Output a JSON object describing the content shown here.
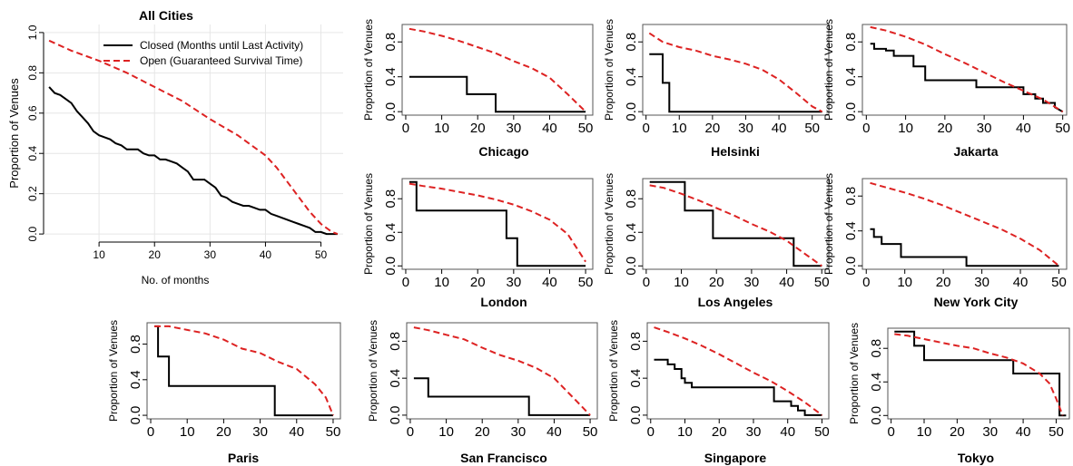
{
  "chart_data": [
    {
      "type": "line",
      "title": "All Cities",
      "xlabel": "No. of months",
      "ylabel": "Proportion of Venues",
      "xlim": [
        0,
        54
      ],
      "ylim": [
        -0.04,
        1.04
      ],
      "xticks": [
        10,
        20,
        30,
        40,
        50
      ],
      "yticks": [
        0.0,
        0.2,
        0.4,
        0.6,
        0.8,
        1.0
      ],
      "ytick_labels": [
        "0.0",
        "0.2",
        "0.4",
        "0.6",
        "0.8",
        "1.0"
      ],
      "grid": true,
      "legend": "top-right",
      "series": [
        {
          "name": "Closed (Months until Last Activity)",
          "style": "solid",
          "color": "#000000",
          "x": [
            1,
            2,
            3,
            4,
            5,
            6,
            7,
            8,
            9,
            10,
            11,
            12,
            13,
            14,
            15,
            16,
            17,
            18,
            19,
            20,
            21,
            22,
            23,
            24,
            25,
            26,
            27,
            28,
            29,
            30,
            31,
            32,
            33,
            34,
            35,
            36,
            37,
            38,
            39,
            40,
            41,
            42,
            43,
            44,
            45,
            46,
            47,
            48,
            49,
            50,
            51,
            52,
            53
          ],
          "y": [
            0.73,
            0.7,
            0.69,
            0.67,
            0.65,
            0.61,
            0.58,
            0.55,
            0.51,
            0.49,
            0.48,
            0.47,
            0.45,
            0.44,
            0.42,
            0.42,
            0.42,
            0.4,
            0.39,
            0.39,
            0.37,
            0.37,
            0.36,
            0.35,
            0.33,
            0.31,
            0.27,
            0.27,
            0.27,
            0.25,
            0.23,
            0.19,
            0.18,
            0.16,
            0.15,
            0.14,
            0.14,
            0.13,
            0.12,
            0.12,
            0.1,
            0.09,
            0.08,
            0.07,
            0.06,
            0.05,
            0.04,
            0.03,
            0.01,
            0.01,
            0.0,
            0.0,
            0.0
          ]
        },
        {
          "name": "Open (Guaranteed Survival Time)",
          "style": "dashed",
          "color": "#dd2222",
          "x": [
            1,
            5,
            10,
            15,
            20,
            25,
            30,
            35,
            40,
            42,
            45,
            48,
            50,
            52,
            53
          ],
          "y": [
            0.96,
            0.91,
            0.86,
            0.8,
            0.73,
            0.66,
            0.57,
            0.49,
            0.39,
            0.33,
            0.22,
            0.11,
            0.05,
            0.01,
            0.0
          ]
        }
      ]
    },
    {
      "type": "line",
      "title": "Chicago",
      "ylabel": "Proportion of Venues",
      "xlim": [
        -1,
        52
      ],
      "ylim": [
        -0.04,
        1.0
      ],
      "xticks": [
        0,
        10,
        20,
        30,
        40,
        50
      ],
      "yticks": [
        0.0,
        0.4,
        0.8
      ],
      "ytick_labels": [
        "0.0",
        "0.4",
        "0.8"
      ],
      "series": [
        {
          "style": "solid",
          "color": "#000000",
          "x": [
            1,
            17,
            17,
            25,
            25,
            50
          ],
          "y": [
            0.4,
            0.4,
            0.2,
            0.2,
            0.0,
            0.0
          ]
        },
        {
          "style": "dashed",
          "color": "#dd2222",
          "x": [
            1,
            5,
            10,
            15,
            20,
            25,
            30,
            35,
            40,
            45,
            50
          ],
          "y": [
            0.95,
            0.92,
            0.87,
            0.81,
            0.74,
            0.67,
            0.58,
            0.5,
            0.39,
            0.2,
            0.0
          ]
        }
      ]
    },
    {
      "type": "line",
      "title": "Helsinki",
      "ylabel": "Proportion of Venues",
      "xlim": [
        -1,
        55
      ],
      "ylim": [
        -0.04,
        1.0
      ],
      "xticks": [
        0,
        10,
        20,
        30,
        40,
        50
      ],
      "yticks": [
        0.0,
        0.4,
        0.8
      ],
      "ytick_labels": [
        "0.0",
        "0.4",
        "0.8"
      ],
      "series": [
        {
          "style": "solid",
          "color": "#000000",
          "x": [
            1,
            5,
            5,
            7,
            7,
            9,
            9,
            53
          ],
          "y": [
            0.66,
            0.66,
            0.33,
            0.33,
            0.0,
            0.0,
            0.0,
            0.0
          ]
        },
        {
          "style": "dashed",
          "color": "#dd2222",
          "x": [
            1,
            5,
            10,
            15,
            20,
            25,
            30,
            35,
            40,
            45,
            50,
            53
          ],
          "y": [
            0.9,
            0.8,
            0.74,
            0.7,
            0.64,
            0.6,
            0.55,
            0.48,
            0.37,
            0.22,
            0.06,
            0.0
          ]
        }
      ]
    },
    {
      "type": "line",
      "title": "Jakarta",
      "ylabel": "Proportion of Venues",
      "xlim": [
        -1,
        51
      ],
      "ylim": [
        -0.04,
        1.0
      ],
      "xticks": [
        0,
        10,
        20,
        30,
        40,
        50
      ],
      "yticks": [
        0.0,
        0.4,
        0.8
      ],
      "ytick_labels": [
        "0.0",
        "0.4",
        "0.8"
      ],
      "series": [
        {
          "style": "solid",
          "color": "#000000",
          "x": [
            1,
            2,
            2,
            5,
            5,
            7,
            7,
            9,
            9,
            12,
            12,
            15,
            15,
            28,
            28,
            40,
            40,
            43,
            43,
            45,
            45,
            48,
            48,
            50
          ],
          "y": [
            0.78,
            0.78,
            0.72,
            0.72,
            0.7,
            0.7,
            0.64,
            0.64,
            0.64,
            0.64,
            0.52,
            0.52,
            0.36,
            0.36,
            0.28,
            0.28,
            0.2,
            0.2,
            0.15,
            0.15,
            0.1,
            0.1,
            0.05,
            0.0
          ]
        },
        {
          "style": "dashed",
          "color": "#dd2222",
          "x": [
            1,
            5,
            10,
            15,
            20,
            25,
            30,
            35,
            40,
            45,
            50
          ],
          "y": [
            0.97,
            0.93,
            0.86,
            0.77,
            0.66,
            0.56,
            0.45,
            0.34,
            0.24,
            0.14,
            0.0
          ]
        }
      ]
    },
    {
      "type": "line",
      "title": "London",
      "ylabel": "Proportion of Venues",
      "xlim": [
        -1,
        52
      ],
      "ylim": [
        -0.04,
        1.04
      ],
      "xticks": [
        0,
        10,
        20,
        30,
        40,
        50
      ],
      "yticks": [
        0.0,
        0.4,
        0.8
      ],
      "ytick_labels": [
        "0.0",
        "0.4",
        "0.8"
      ],
      "series": [
        {
          "style": "solid",
          "color": "#000000",
          "x": [
            1,
            3,
            3,
            28,
            28,
            30,
            30,
            31,
            31,
            50
          ],
          "y": [
            1.0,
            1.0,
            0.66,
            0.66,
            0.33,
            0.33,
            0.33,
            0.33,
            0.0,
            0.0
          ]
        },
        {
          "style": "dashed",
          "color": "#dd2222",
          "x": [
            1,
            5,
            10,
            15,
            20,
            25,
            30,
            35,
            40,
            45,
            50
          ],
          "y": [
            0.98,
            0.95,
            0.92,
            0.88,
            0.84,
            0.79,
            0.73,
            0.65,
            0.55,
            0.38,
            0.05
          ]
        }
      ]
    },
    {
      "type": "line",
      "title": "Los Angeles",
      "ylabel": "Proportion of Venues",
      "xlim": [
        -1,
        52
      ],
      "ylim": [
        -0.04,
        1.04
      ],
      "xticks": [
        0,
        10,
        20,
        30,
        40,
        50
      ],
      "yticks": [
        0.0,
        0.4,
        0.8
      ],
      "ytick_labels": [
        "0.0",
        "0.4",
        "0.8"
      ],
      "series": [
        {
          "style": "solid",
          "color": "#000000",
          "x": [
            1,
            11,
            11,
            19,
            19,
            42,
            42,
            50
          ],
          "y": [
            1.0,
            1.0,
            0.66,
            0.66,
            0.33,
            0.33,
            0.0,
            0.0
          ]
        },
        {
          "style": "dashed",
          "color": "#dd2222",
          "x": [
            1,
            5,
            10,
            15,
            20,
            25,
            30,
            35,
            40,
            45,
            50
          ],
          "y": [
            0.96,
            0.93,
            0.86,
            0.78,
            0.69,
            0.6,
            0.5,
            0.41,
            0.3,
            0.15,
            0.0
          ]
        }
      ]
    },
    {
      "type": "line",
      "title": "New York City",
      "ylabel": "Proportion of Venues",
      "xlim": [
        -1,
        52
      ],
      "ylim": [
        -0.04,
        1.0
      ],
      "xticks": [
        0,
        10,
        20,
        30,
        40,
        50
      ],
      "yticks": [
        0.0,
        0.4,
        0.8
      ],
      "ytick_labels": [
        "0.0",
        "0.4",
        "0.8"
      ],
      "series": [
        {
          "style": "solid",
          "color": "#000000",
          "x": [
            1,
            2,
            2,
            4,
            4,
            6,
            6,
            9,
            9,
            26,
            26,
            50
          ],
          "y": [
            0.42,
            0.42,
            0.33,
            0.33,
            0.25,
            0.25,
            0.25,
            0.25,
            0.1,
            0.1,
            0.0,
            0.0
          ]
        },
        {
          "style": "dashed",
          "color": "#dd2222",
          "x": [
            1,
            5,
            10,
            15,
            20,
            25,
            30,
            35,
            40,
            45,
            50
          ],
          "y": [
            0.95,
            0.9,
            0.84,
            0.77,
            0.69,
            0.6,
            0.51,
            0.42,
            0.31,
            0.18,
            0.0
          ]
        }
      ]
    },
    {
      "type": "line",
      "title": "Paris",
      "ylabel": "Proportion of Venues",
      "xlim": [
        -1,
        52
      ],
      "ylim": [
        -0.04,
        1.04
      ],
      "xticks": [
        0,
        10,
        20,
        30,
        40,
        50
      ],
      "yticks": [
        0.0,
        0.4,
        0.8
      ],
      "ytick_labels": [
        "0.0",
        "0.4",
        "0.8"
      ],
      "series": [
        {
          "style": "solid",
          "color": "#000000",
          "x": [
            1,
            2,
            2,
            4,
            4,
            5,
            5,
            34,
            34,
            50
          ],
          "y": [
            1.0,
            1.0,
            0.66,
            0.66,
            0.66,
            0.66,
            0.33,
            0.33,
            0.0,
            0.0
          ]
        },
        {
          "style": "dashed",
          "color": "#dd2222",
          "x": [
            1,
            5,
            10,
            15,
            20,
            25,
            30,
            35,
            40,
            45,
            48,
            50
          ],
          "y": [
            1.0,
            1.0,
            0.96,
            0.92,
            0.85,
            0.75,
            0.7,
            0.6,
            0.52,
            0.35,
            0.2,
            0.0
          ]
        }
      ]
    },
    {
      "type": "line",
      "title": "San Francisco",
      "ylabel": "Proportion of Venues",
      "xlim": [
        -1,
        52
      ],
      "ylim": [
        -0.04,
        1.0
      ],
      "xticks": [
        0,
        10,
        20,
        30,
        40,
        50
      ],
      "yticks": [
        0.0,
        0.4,
        0.8
      ],
      "ytick_labels": [
        "0.0",
        "0.4",
        "0.8"
      ],
      "series": [
        {
          "style": "solid",
          "color": "#000000",
          "x": [
            1,
            5,
            5,
            33,
            33,
            50
          ],
          "y": [
            0.4,
            0.4,
            0.2,
            0.2,
            0.0,
            0.0
          ]
        },
        {
          "style": "dashed",
          "color": "#dd2222",
          "x": [
            1,
            5,
            10,
            15,
            20,
            25,
            30,
            35,
            40,
            45,
            50
          ],
          "y": [
            0.95,
            0.92,
            0.87,
            0.82,
            0.73,
            0.65,
            0.59,
            0.51,
            0.4,
            0.2,
            0.0
          ]
        }
      ]
    },
    {
      "type": "line",
      "title": "Singapore",
      "ylabel": "Proportion of Venues",
      "xlim": [
        -1,
        52
      ],
      "ylim": [
        -0.04,
        1.0
      ],
      "xticks": [
        0,
        10,
        20,
        30,
        40,
        50
      ],
      "yticks": [
        0.0,
        0.4,
        0.8
      ],
      "ytick_labels": [
        "0.0",
        "0.4",
        "0.8"
      ],
      "series": [
        {
          "style": "solid",
          "color": "#000000",
          "x": [
            1,
            5,
            5,
            7,
            7,
            9,
            9,
            10,
            10,
            12,
            12,
            14,
            14,
            36,
            36,
            41,
            41,
            43,
            43,
            45,
            45,
            50
          ],
          "y": [
            0.6,
            0.6,
            0.55,
            0.55,
            0.5,
            0.5,
            0.4,
            0.4,
            0.35,
            0.35,
            0.3,
            0.3,
            0.3,
            0.3,
            0.15,
            0.15,
            0.1,
            0.1,
            0.05,
            0.05,
            0.0,
            0.0
          ]
        },
        {
          "style": "dashed",
          "color": "#dd2222",
          "x": [
            1,
            5,
            10,
            15,
            20,
            25,
            30,
            35,
            40,
            45,
            50
          ],
          "y": [
            0.95,
            0.9,
            0.83,
            0.75,
            0.66,
            0.56,
            0.46,
            0.37,
            0.26,
            0.14,
            0.0
          ]
        }
      ]
    },
    {
      "type": "line",
      "title": "Tokyo",
      "ylabel": "Proportion of Venues",
      "xlim": [
        -1,
        54
      ],
      "ylim": [
        -0.04,
        1.04
      ],
      "xticks": [
        0,
        10,
        20,
        30,
        40,
        50
      ],
      "yticks": [
        0.0,
        0.4,
        0.8
      ],
      "ytick_labels": [
        "0.0",
        "0.4",
        "0.8"
      ],
      "series": [
        {
          "style": "solid",
          "color": "#000000",
          "x": [
            1,
            7,
            7,
            8,
            8,
            10,
            10,
            37,
            37,
            51,
            51,
            53
          ],
          "y": [
            1.0,
            1.0,
            0.83,
            0.83,
            0.83,
            0.83,
            0.66,
            0.66,
            0.5,
            0.5,
            0.0,
            0.0
          ]
        },
        {
          "style": "dashed",
          "color": "#dd2222",
          "x": [
            1,
            5,
            10,
            15,
            20,
            25,
            30,
            35,
            40,
            45,
            48,
            50,
            52
          ],
          "y": [
            0.97,
            0.95,
            0.91,
            0.87,
            0.83,
            0.8,
            0.74,
            0.69,
            0.62,
            0.5,
            0.38,
            0.2,
            0.0
          ]
        }
      ]
    }
  ]
}
